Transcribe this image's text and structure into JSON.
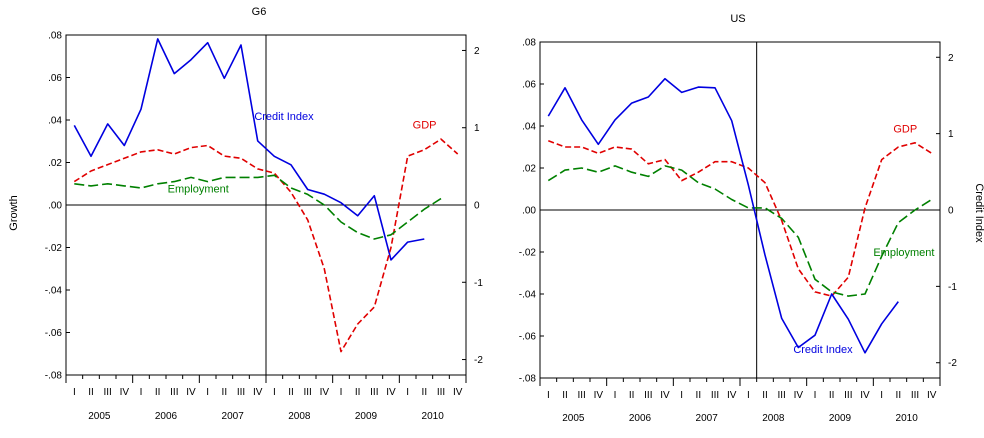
{
  "chart_data": [
    {
      "type": "line",
      "title": "G6",
      "ylabel": "Growth",
      "y2label": "",
      "ylim": [
        -0.08,
        0.08
      ],
      "y2lim": [
        -2.2,
        2.2
      ],
      "y_ticks": [
        ".08",
        ".06",
        ".04",
        ".02",
        ".00",
        "-.02",
        "-.04",
        "-.06",
        "-.08"
      ],
      "y2_ticks": [
        "2",
        "1",
        "0",
        "-1",
        "-2"
      ],
      "quarters": [
        "I",
        "II",
        "III",
        "IV",
        "I",
        "II",
        "III",
        "IV",
        "I",
        "II",
        "III",
        "IV",
        "I",
        "II",
        "III",
        "IV",
        "I",
        "II",
        "III",
        "IV",
        "I",
        "II",
        "III",
        "IV"
      ],
      "years": [
        "2005",
        "2006",
        "2007",
        "2008",
        "2009",
        "2010"
      ],
      "vline_index": 12,
      "series": [
        {
          "name": "Credit Index",
          "axis": "right",
          "color": "#0000e0",
          "dash": "solid",
          "values": [
            1.03,
            0.63,
            1.05,
            0.77,
            1.24,
            2.15,
            1.7,
            1.88,
            2.1,
            1.64,
            2.07,
            0.83,
            0.63,
            0.52,
            0.2,
            0.14,
            0.03,
            -0.14,
            0.12,
            -0.71,
            -0.48,
            -0.44,
            null,
            null
          ]
        },
        {
          "name": "GDP",
          "axis": "left",
          "color": "#e00000",
          "dash": "dashed",
          "values": [
            0.011,
            0.016,
            0.019,
            0.022,
            0.025,
            0.026,
            0.024,
            0.027,
            0.028,
            0.023,
            0.022,
            0.017,
            0.015,
            0.006,
            -0.007,
            -0.03,
            -0.069,
            -0.056,
            -0.048,
            -0.02,
            0.023,
            0.026,
            0.031,
            0.024
          ]
        },
        {
          "name": "Employment",
          "axis": "left",
          "color": "#008000",
          "dash": "longdash",
          "values": [
            0.01,
            0.009,
            0.01,
            0.009,
            0.008,
            0.01,
            0.011,
            0.013,
            0.011,
            0.013,
            0.013,
            0.013,
            0.014,
            0.008,
            0.005,
            0.0,
            -0.008,
            -0.013,
            -0.016,
            -0.014,
            -0.008,
            -0.002,
            0.003,
            null
          ]
        }
      ],
      "annotations": [
        {
          "text": "Credit Index",
          "series": "Credit Index",
          "color": "#0000e0",
          "at_index": 10.8,
          "at_value": 0.04
        },
        {
          "text": "GDP",
          "series": "GDP",
          "color": "#e00000",
          "at_index": 20.3,
          "at_value": 0.036
        },
        {
          "text": "Employment",
          "series": "Employment",
          "color": "#008000",
          "at_index": 5.6,
          "at_value": 0.006
        }
      ]
    },
    {
      "type": "line",
      "title": "US",
      "ylabel": "",
      "y2label": "Credit Index",
      "ylim": [
        -0.08,
        0.08
      ],
      "y2lim": [
        -2.2,
        2.2
      ],
      "y_ticks": [
        ".08",
        ".06",
        ".04",
        ".02",
        ".00",
        "-.02",
        "-.04",
        "-.06",
        "-.08"
      ],
      "y2_ticks": [
        "2",
        "1",
        "0",
        "-1",
        "-2"
      ],
      "quarters": [
        "I",
        "II",
        "III",
        "IV",
        "I",
        "II",
        "III",
        "IV",
        "I",
        "II",
        "III",
        "IV",
        "I",
        "II",
        "III",
        "IV",
        "I",
        "II",
        "III",
        "IV",
        "I",
        "II",
        "III",
        "IV"
      ],
      "years": [
        "2005",
        "2006",
        "2007",
        "2008",
        "2009",
        "2010"
      ],
      "vline_index": 13,
      "series": [
        {
          "name": "GDP",
          "axis": "left",
          "color": "#e00000",
          "dash": "dashed",
          "values": [
            0.033,
            0.03,
            0.03,
            0.027,
            0.03,
            0.029,
            0.022,
            0.024,
            0.014,
            0.018,
            0.023,
            0.023,
            0.02,
            0.013,
            -0.005,
            -0.028,
            -0.039,
            -0.041,
            -0.032,
            0.001,
            0.024,
            0.03,
            0.032,
            0.027
          ]
        },
        {
          "name": "Employment",
          "axis": "left",
          "color": "#008000",
          "dash": "longdash",
          "values": [
            0.014,
            0.019,
            0.02,
            0.018,
            0.021,
            0.018,
            0.016,
            0.021,
            0.019,
            0.013,
            0.01,
            0.005,
            0.001,
            0.001,
            -0.004,
            -0.013,
            -0.033,
            -0.039,
            -0.041,
            -0.04,
            -0.022,
            -0.006,
            0.0,
            0.005
          ]
        },
        {
          "name": "Credit Index",
          "axis": "right",
          "color": "#0000e0",
          "dash": "solid",
          "values": [
            1.23,
            1.6,
            1.18,
            0.86,
            1.18,
            1.4,
            1.48,
            1.72,
            1.54,
            1.61,
            1.6,
            1.17,
            0.33,
            -0.59,
            -1.42,
            -1.8,
            -1.64,
            -1.1,
            -1.43,
            -1.87,
            -1.49,
            -1.2,
            null,
            null
          ]
        }
      ],
      "annotations": [
        {
          "text": "GDP",
          "series": "GDP",
          "color": "#e00000",
          "at_index": 20.7,
          "at_value": 0.037
        },
        {
          "text": "Employment",
          "series": "Employment",
          "color": "#008000",
          "at_index": 19.5,
          "at_value": -0.022
        },
        {
          "text": "Credit Index",
          "series": "Credit Index",
          "color": "#0000e0",
          "at_index": 14.7,
          "at_value": -0.068
        }
      ]
    }
  ]
}
